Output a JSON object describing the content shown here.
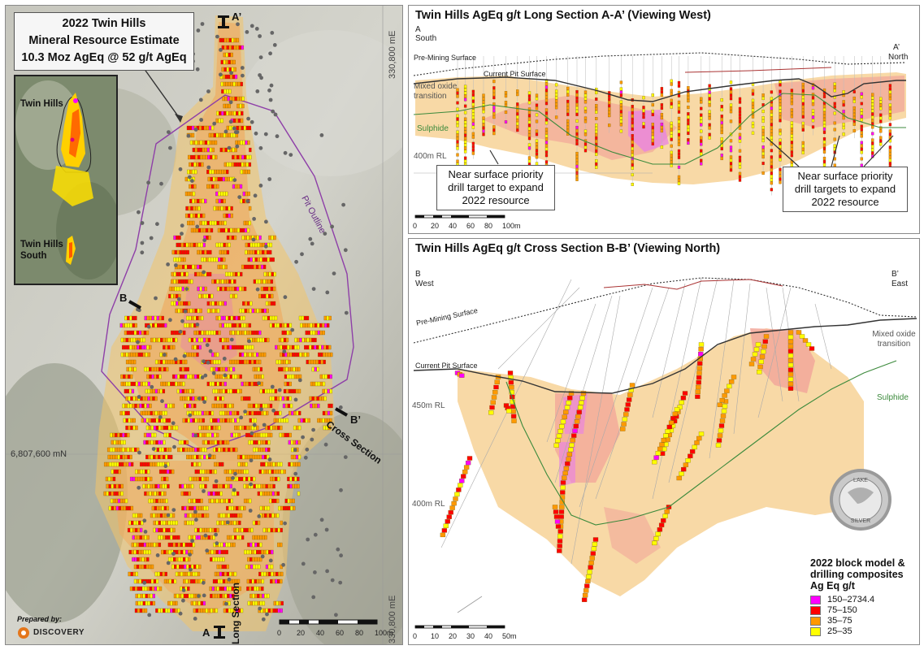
{
  "map": {
    "estimate_title": "2022 Twin Hills",
    "estimate_subtitle": "Mineral Resource Estimate",
    "estimate_value": "10.3 Moz AgEq @ 52 g/t AgEq",
    "inset_label_twin_hills": "Twin Hills",
    "inset_label_south": "Twin Hills South",
    "pit_outline_label": "Pit Outline",
    "northing_label": "6,807,600 mN",
    "easting_top": "330,800 mE",
    "easting_bottom": "330,800 mE",
    "section_a_prime": "A’",
    "section_a": "A",
    "section_b": "B",
    "section_b_prime": "B’",
    "long_section_label": "Long Section",
    "cross_section_label": "Cross Section",
    "prepared_by": "Prepared by:",
    "company": "DISCOVERY",
    "scale_ticks": [
      "0",
      "20",
      "40",
      "60",
      "80",
      "100m"
    ]
  },
  "long_section": {
    "title": "Twin Hills AgEq g/t Long Section A-A’ (Viewing West)",
    "left_end": "A",
    "left_dir": "South",
    "right_end": "A’",
    "right_dir": "North",
    "pre_mining": "Pre-Mining Surface",
    "current_pit": "Current Pit Surface",
    "mixed_oxide": "Mixed oxide transition",
    "sulphide": "Sulphide",
    "rl_label": "400m RL",
    "callout_left": "Near surface priority drill target to expand 2022 resource",
    "callout_right": "Near surface priority drill targets to expand 2022 resource",
    "scale_ticks": [
      "0",
      "20",
      "40",
      "60",
      "80",
      "100m"
    ]
  },
  "cross_section": {
    "title": "Twin Hills AgEq g/t Cross Section B-B’ (Viewing North)",
    "left_end": "B",
    "left_dir": "West",
    "right_end": "B’",
    "right_dir": "East",
    "pre_mining": "Pre-Mining Surface",
    "current_pit": "Current Pit Surface",
    "mixed_oxide": "Mixed oxide transition",
    "sulphide": "Sulphide",
    "rl_450": "450m RL",
    "rl_400": "400m RL",
    "coin_top": "LAKE",
    "coin_bottom": "SILVER",
    "scale_ticks": [
      "0",
      "10",
      "20",
      "30",
      "40",
      "50m"
    ]
  },
  "legend": {
    "title": "2022 block model & drilling composites Ag Eq g/t",
    "items": [
      {
        "label": "150–2734.4",
        "color": "#ff00ff"
      },
      {
        "label": "75–150",
        "color": "#ff0000"
      },
      {
        "label": "35–75",
        "color": "#ff9900"
      },
      {
        "label": "25–35",
        "color": "#ffff00"
      }
    ]
  },
  "colors": {
    "pit_outline": "#8e3fa8",
    "sulphide_line": "#3c8a3c",
    "pre_mining_line": "#333333",
    "current_pit_line": "#333333",
    "low_grade_fill": "#f8d9a6",
    "mid_grade_fill": "#f5a0a0"
  }
}
